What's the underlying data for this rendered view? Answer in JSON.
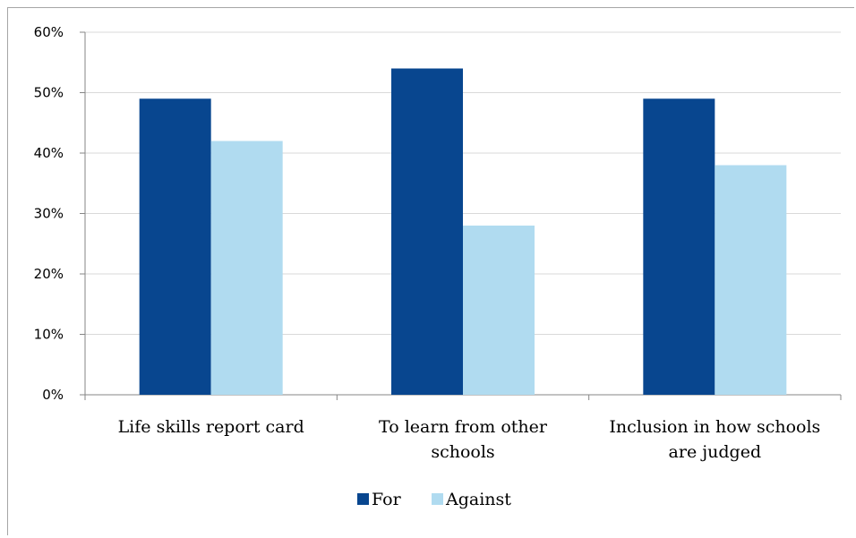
{
  "chart_data": {
    "type": "bar",
    "categories": [
      [
        "Life skills report card"
      ],
      [
        "To learn from other",
        "schools"
      ],
      [
        "Inclusion in how schools",
        "are judged"
      ]
    ],
    "series": [
      {
        "name": "For",
        "values": [
          49,
          54,
          49
        ],
        "color": "#08468f"
      },
      {
        "name": "Against",
        "values": [
          42,
          28,
          38
        ],
        "color": "#b0dbf0"
      }
    ],
    "y_ticks": [
      "0%",
      "10%",
      "20%",
      "30%",
      "40%",
      "50%",
      "60%"
    ],
    "ylim": [
      0,
      60
    ],
    "grid": true,
    "legend": "bottom"
  }
}
